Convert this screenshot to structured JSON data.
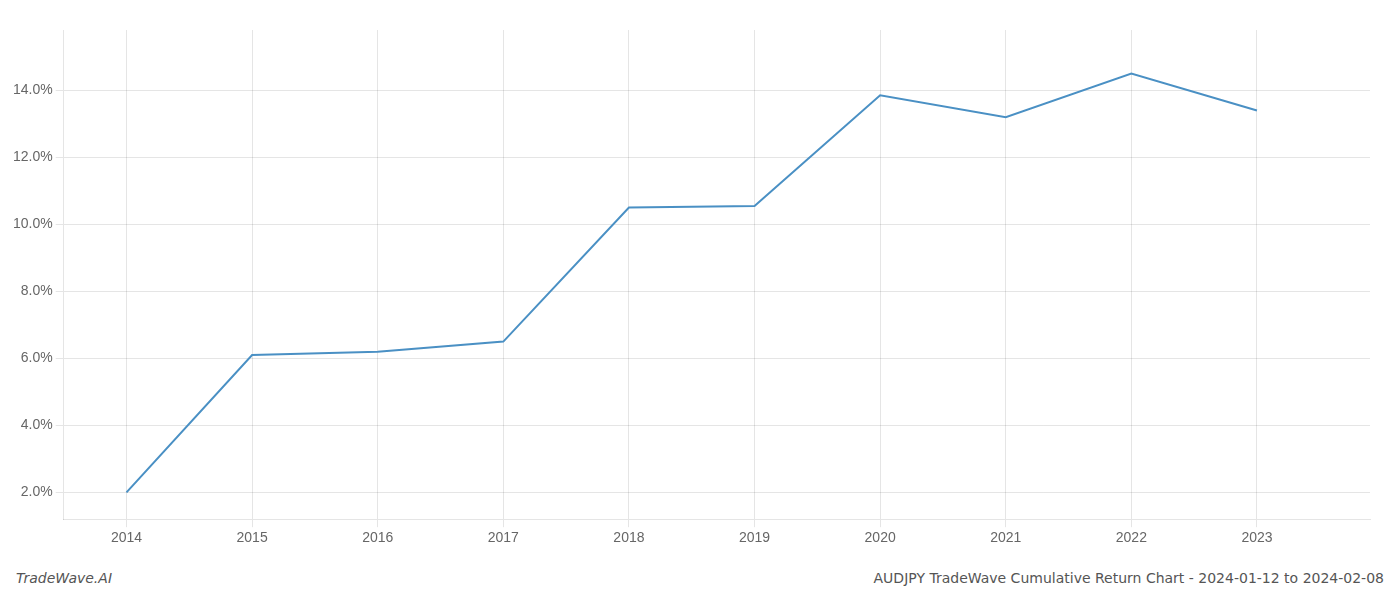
{
  "chart_data": {
    "type": "line",
    "x": [
      2014,
      2015,
      2016,
      2017,
      2018,
      2019,
      2020,
      2021,
      2022,
      2023
    ],
    "values": [
      2.0,
      6.1,
      6.2,
      6.5,
      10.5,
      10.55,
      13.85,
      13.2,
      14.5,
      13.4
    ],
    "color": "#4a90c4",
    "xlim": [
      2013.5,
      2023.9
    ],
    "ylim": [
      1.2,
      15.8
    ],
    "xticks": [
      2014,
      2015,
      2016,
      2017,
      2018,
      2019,
      2020,
      2021,
      2022,
      2023
    ],
    "yticks": [
      {
        "value": 2.0,
        "label": "2.0%"
      },
      {
        "value": 4.0,
        "label": "4.0%"
      },
      {
        "value": 6.0,
        "label": "6.0%"
      },
      {
        "value": 8.0,
        "label": "8.0%"
      },
      {
        "value": 10.0,
        "label": "10.0%"
      },
      {
        "value": 12.0,
        "label": "12.0%"
      },
      {
        "value": 14.0,
        "label": "14.0%"
      }
    ],
    "grid": true,
    "annotations": [
      "TradeWave.AI",
      "AUDJPY TradeWave Cumulative Return Chart - 2024-01-12 to 2024-02-08"
    ]
  }
}
